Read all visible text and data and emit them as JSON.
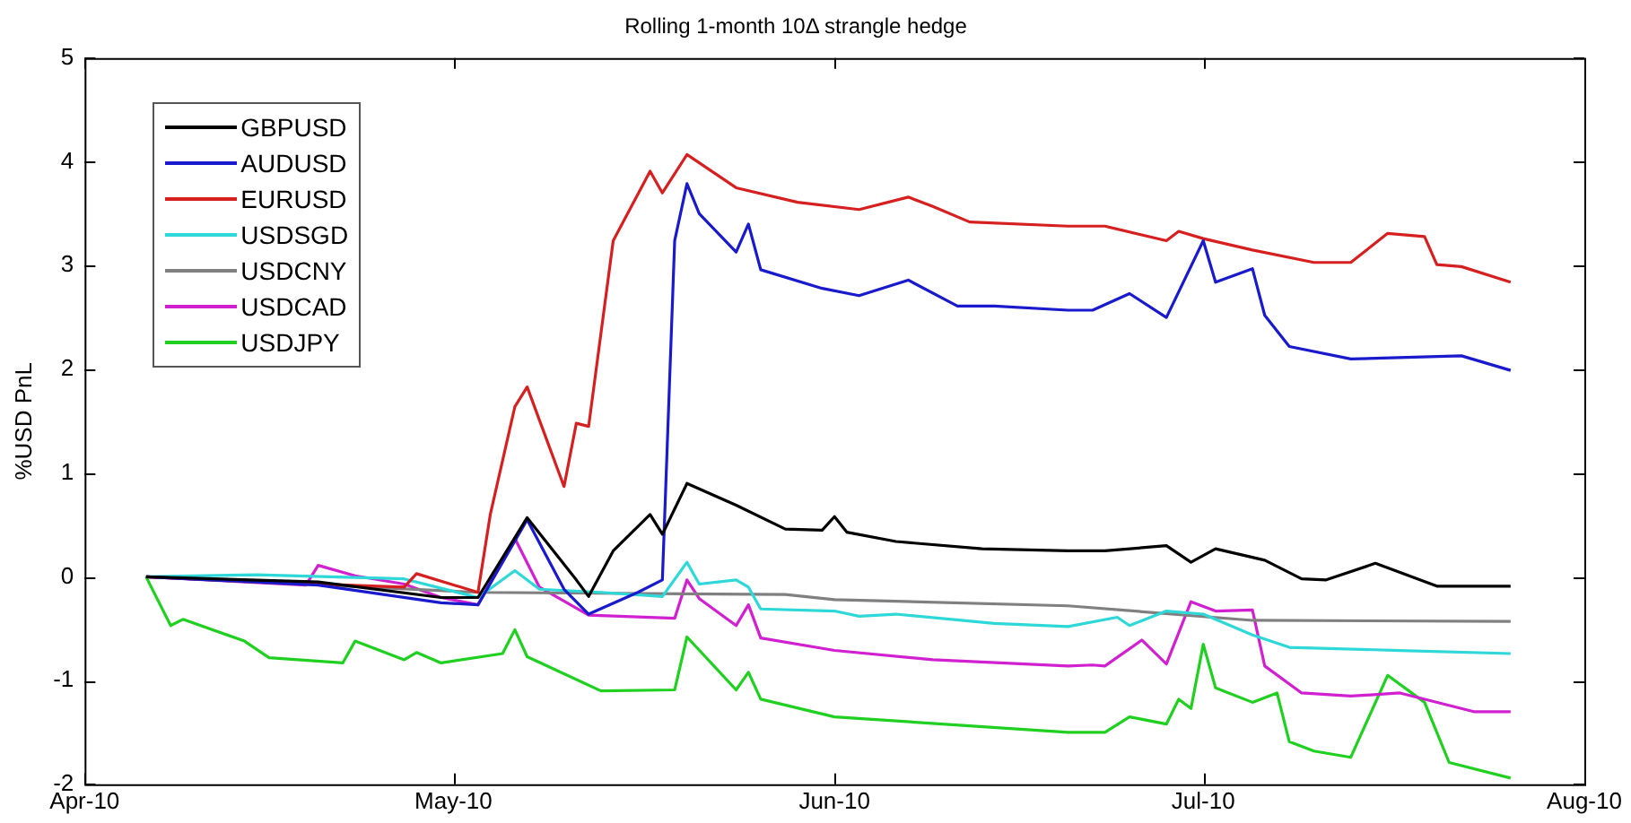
{
  "chart_data": {
    "type": "line",
    "title": "Rolling 1-month 10Δ strangle hedge",
    "ylabel": "%USD PnL",
    "xlim": [
      "2010-04-01",
      "2010-08-01"
    ],
    "xticks": [
      {
        "value": "2010-04-01",
        "label": "Apr-10"
      },
      {
        "value": "2010-05-01",
        "label": "May-10"
      },
      {
        "value": "2010-06-01",
        "label": "Jun-10"
      },
      {
        "value": "2010-07-01",
        "label": "Jul-10"
      },
      {
        "value": "2010-08-01",
        "label": "Aug-10"
      }
    ],
    "ylim": [
      -2,
      5
    ],
    "yticks": [
      -2,
      -1,
      0,
      1,
      2,
      3,
      4,
      5
    ],
    "grid": false,
    "legend": "top left",
    "marker": "none",
    "line_style": "solid",
    "series": [
      {
        "name": "GBPUSD",
        "color": "#000000",
        "x": [
          "2010-04-06",
          "2010-04-20",
          "2010-04-30",
          "2010-05-03",
          "2010-05-07",
          "2010-05-11",
          "2010-05-12",
          "2010-05-14",
          "2010-05-17",
          "2010-05-18",
          "2010-05-20",
          "2010-05-24",
          "2010-05-28",
          "2010-05-31",
          "2010-06-01",
          "2010-06-02",
          "2010-06-06",
          "2010-06-13",
          "2010-06-20",
          "2010-06-23",
          "2010-06-28",
          "2010-06-30",
          "2010-07-02",
          "2010-07-06",
          "2010-07-09",
          "2010-07-11",
          "2010-07-15",
          "2010-07-20",
          "2010-07-26"
        ],
        "values": [
          0,
          -0.05,
          -0.2,
          -0.2,
          0.57,
          -0.03,
          -0.19,
          0.25,
          0.6,
          0.41,
          0.9,
          0.69,
          0.46,
          0.45,
          0.58,
          0.43,
          0.34,
          0.27,
          0.25,
          0.25,
          0.3,
          0.14,
          0.27,
          0.16,
          -0.02,
          -0.03,
          0.13,
          -0.09,
          -0.09
        ]
      },
      {
        "name": "AUDUSD",
        "color": "#1a1acd",
        "x": [
          "2010-04-06",
          "2010-04-20",
          "2010-04-30",
          "2010-05-03",
          "2010-05-07",
          "2010-05-10",
          "2010-05-12",
          "2010-05-16",
          "2010-05-18",
          "2010-05-19",
          "2010-05-20",
          "2010-05-21",
          "2010-05-24",
          "2010-05-25",
          "2010-05-26",
          "2010-05-31",
          "2010-06-03",
          "2010-06-07",
          "2010-06-11",
          "2010-06-14",
          "2010-06-20",
          "2010-06-22",
          "2010-06-25",
          "2010-06-28",
          "2010-07-01",
          "2010-07-02",
          "2010-07-05",
          "2010-07-06",
          "2010-07-08",
          "2010-07-13",
          "2010-07-22",
          "2010-07-26"
        ],
        "values": [
          0,
          -0.08,
          -0.25,
          -0.27,
          0.55,
          -0.12,
          -0.36,
          -0.15,
          -0.03,
          3.24,
          3.79,
          3.5,
          3.13,
          3.4,
          2.96,
          2.78,
          2.71,
          2.86,
          2.61,
          2.61,
          2.57,
          2.57,
          2.73,
          2.5,
          3.24,
          2.84,
          2.97,
          2.52,
          2.22,
          2.1,
          2.13,
          1.99
        ]
      },
      {
        "name": "EURUSD",
        "color": "#d62020",
        "x": [
          "2010-04-06",
          "2010-04-15",
          "2010-04-27",
          "2010-04-28",
          "2010-05-03",
          "2010-05-04",
          "2010-05-06",
          "2010-05-07",
          "2010-05-10",
          "2010-05-11",
          "2010-05-12",
          "2010-05-14",
          "2010-05-17",
          "2010-05-18",
          "2010-05-20",
          "2010-05-24",
          "2010-05-29",
          "2010-06-03",
          "2010-06-07",
          "2010-06-09",
          "2010-06-12",
          "2010-06-20",
          "2010-06-23",
          "2010-06-28",
          "2010-06-29",
          "2010-07-01",
          "2010-07-05",
          "2010-07-10",
          "2010-07-13",
          "2010-07-16",
          "2010-07-19",
          "2010-07-20",
          "2010-07-22",
          "2010-07-26"
        ],
        "values": [
          0,
          -0.05,
          -0.1,
          0.03,
          -0.15,
          0.6,
          1.64,
          1.83,
          0.87,
          1.48,
          1.45,
          3.24,
          3.91,
          3.7,
          4.07,
          3.75,
          3.61,
          3.54,
          3.66,
          3.57,
          3.42,
          3.38,
          3.38,
          3.24,
          3.33,
          3.26,
          3.15,
          3.03,
          3.03,
          3.31,
          3.28,
          3.01,
          2.99,
          2.84
        ]
      },
      {
        "name": "USDSGD",
        "color": "#2fd8d8",
        "x": [
          "2010-04-06",
          "2010-04-15",
          "2010-04-27",
          "2010-05-03",
          "2010-05-06",
          "2010-05-08",
          "2010-05-13",
          "2010-05-18",
          "2010-05-20",
          "2010-05-21",
          "2010-05-24",
          "2010-05-25",
          "2010-05-26",
          "2010-06-01",
          "2010-06-03",
          "2010-06-06",
          "2010-06-14",
          "2010-06-20",
          "2010-06-24",
          "2010-06-25",
          "2010-06-28",
          "2010-07-01",
          "2010-07-05",
          "2010-07-08",
          "2010-07-17",
          "2010-07-26"
        ],
        "values": [
          0,
          0.02,
          -0.02,
          -0.2,
          0.06,
          -0.12,
          -0.15,
          -0.19,
          0.14,
          -0.07,
          -0.03,
          -0.1,
          -0.31,
          -0.33,
          -0.38,
          -0.36,
          -0.45,
          -0.48,
          -0.39,
          -0.47,
          -0.33,
          -0.36,
          -0.56,
          -0.68,
          -0.71,
          -0.74
        ]
      },
      {
        "name": "USDCNY",
        "color": "#808080",
        "x": [
          "2010-04-06",
          "2010-05-03",
          "2010-05-28",
          "2010-06-01",
          "2010-06-20",
          "2010-07-05",
          "2010-07-26"
        ],
        "values": [
          0,
          -0.15,
          -0.17,
          -0.22,
          -0.28,
          -0.42,
          -0.43
        ]
      },
      {
        "name": "USDCAD",
        "color": "#d020d0",
        "x": [
          "2010-04-06",
          "2010-04-19",
          "2010-04-20",
          "2010-04-23",
          "2010-04-27",
          "2010-04-30",
          "2010-05-03",
          "2010-05-06",
          "2010-05-08",
          "2010-05-12",
          "2010-05-19",
          "2010-05-20",
          "2010-05-21",
          "2010-05-24",
          "2010-05-25",
          "2010-05-26",
          "2010-06-01",
          "2010-06-09",
          "2010-06-20",
          "2010-06-22",
          "2010-06-23",
          "2010-06-26",
          "2010-06-28",
          "2010-06-30",
          "2010-07-02",
          "2010-07-05",
          "2010-07-06",
          "2010-07-09",
          "2010-07-13",
          "2010-07-17",
          "2010-07-23",
          "2010-07-26"
        ],
        "values": [
          0,
          -0.08,
          0.11,
          0.01,
          -0.07,
          -0.2,
          -0.27,
          0.37,
          -0.1,
          -0.37,
          -0.4,
          -0.03,
          -0.21,
          -0.47,
          -0.27,
          -0.59,
          -0.71,
          -0.8,
          -0.86,
          -0.85,
          -0.86,
          -0.61,
          -0.84,
          -0.24,
          -0.33,
          -0.32,
          -0.86,
          -1.12,
          -1.15,
          -1.12,
          -1.3,
          -1.3
        ]
      },
      {
        "name": "USDJPY",
        "color": "#20d020",
        "x": [
          "2010-04-06",
          "2010-04-08",
          "2010-04-09",
          "2010-04-14",
          "2010-04-16",
          "2010-04-22",
          "2010-04-23",
          "2010-04-27",
          "2010-04-28",
          "2010-04-30",
          "2010-05-05",
          "2010-05-06",
          "2010-05-07",
          "2010-05-13",
          "2010-05-19",
          "2010-05-20",
          "2010-05-24",
          "2010-05-25",
          "2010-05-26",
          "2010-06-01",
          "2010-06-20",
          "2010-06-23",
          "2010-06-25",
          "2010-06-28",
          "2010-06-29",
          "2010-06-30",
          "2010-07-01",
          "2010-07-02",
          "2010-07-05",
          "2010-07-07",
          "2010-07-08",
          "2010-07-10",
          "2010-07-13",
          "2010-07-16",
          "2010-07-19",
          "2010-07-21",
          "2010-07-26"
        ],
        "values": [
          0,
          -0.47,
          -0.41,
          -0.62,
          -0.78,
          -0.83,
          -0.62,
          -0.8,
          -0.73,
          -0.83,
          -0.74,
          -0.51,
          -0.77,
          -1.1,
          -1.09,
          -0.58,
          -1.09,
          -0.92,
          -1.18,
          -1.35,
          -1.5,
          -1.5,
          -1.35,
          -1.42,
          -1.18,
          -1.27,
          -0.65,
          -1.07,
          -1.21,
          -1.12,
          -1.59,
          -1.68,
          -1.74,
          -0.95,
          -1.21,
          -1.79,
          -1.94
        ]
      }
    ]
  }
}
